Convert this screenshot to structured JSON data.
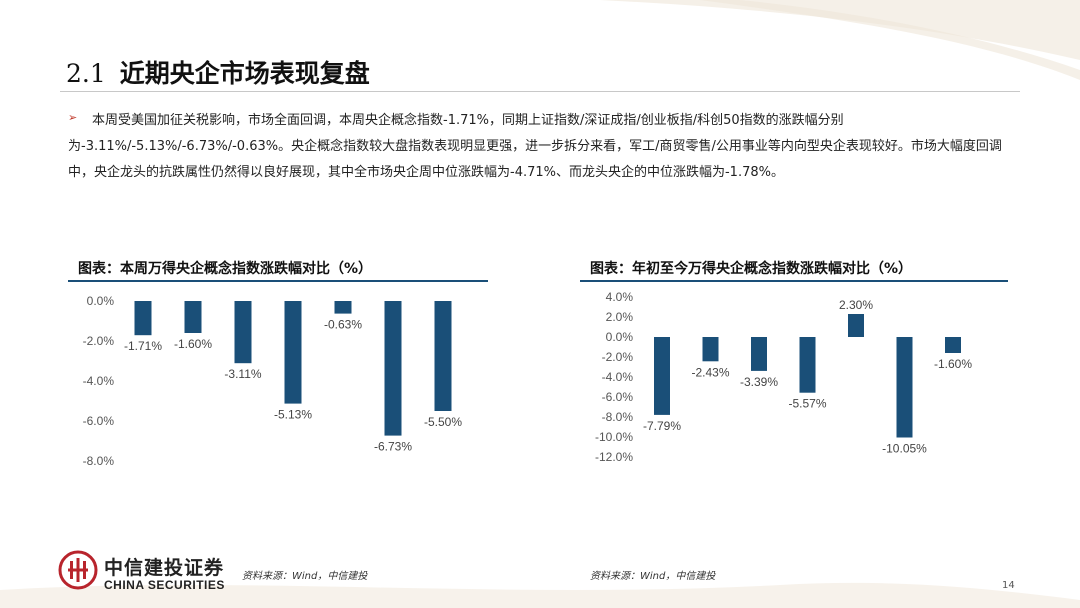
{
  "slide": {
    "section_number": "2.1",
    "title": "近期央企市场表现复盘",
    "bullet_marker": "➢",
    "paragraph": "本周受美国加征关税影响，市场全面回调，本周央企概念指数-1.71%，同期上证指数/深证成指/创业板指/科创50指数的涨跌幅分别为-3.11%/-5.13%/-6.73%/-0.63%。央企概念指数较大盘指数表现明显更强，进一步拆分来看，军工/商贸零售/公用事业等内向型央企表现较好。市场大幅度回调中，央企龙头的抗跌属性仍然得以良好展现，其中全市场央企周中位涨跌幅为-4.71%、而龙头央企的中位涨跌幅为-1.78%。",
    "page_number": "14"
  },
  "logo": {
    "name_cn": "中信建投证券",
    "name_en": "CHINA SECURITIES"
  },
  "footer": {
    "source_left": "资料来源：Wind，中信建投",
    "source_right": "资料来源：Wind，中信建投"
  },
  "colors": {
    "bar": "#1a4f78",
    "accent": "#c0392b",
    "logo": "#b8242c"
  },
  "chart_data": [
    {
      "type": "bar",
      "title": "图表：本周万得央企概念指数涨跌幅对比（%）",
      "values": [
        -1.71,
        -1.6,
        -3.11,
        -5.13,
        -0.63,
        -6.73,
        -5.5
      ],
      "value_labels": [
        "-1.71%",
        "-1.60%",
        "-3.11%",
        "-5.13%",
        "-0.63%",
        "-6.73%",
        "-5.50%"
      ],
      "yticks": [
        0,
        -2,
        -4,
        -6,
        -8
      ],
      "ytick_labels": [
        "0.0%",
        "-2.0%",
        "-4.0%",
        "-6.0%",
        "-8.0%"
      ],
      "ylim": [
        -8,
        0
      ],
      "categories_visible": false
    },
    {
      "type": "bar",
      "title": "图表：年初至今万得央企概念指数涨跌幅对比（%）",
      "values": [
        -7.79,
        -2.43,
        -3.39,
        -5.57,
        2.3,
        -10.05,
        -1.6
      ],
      "value_labels": [
        "-7.79%",
        "-2.43%",
        "-3.39%",
        "-5.57%",
        "2.30%",
        "-10.05%",
        "-1.60%"
      ],
      "yticks": [
        4,
        2,
        0,
        -2,
        -4,
        -6,
        -8,
        -10,
        -12
      ],
      "ytick_labels": [
        "4.0%",
        "2.0%",
        "0.0%",
        "-2.0%",
        "-4.0%",
        "-6.0%",
        "-8.0%",
        "-10.0%",
        "-12.0%"
      ],
      "ylim": [
        -12,
        4
      ],
      "categories_visible": false
    }
  ]
}
